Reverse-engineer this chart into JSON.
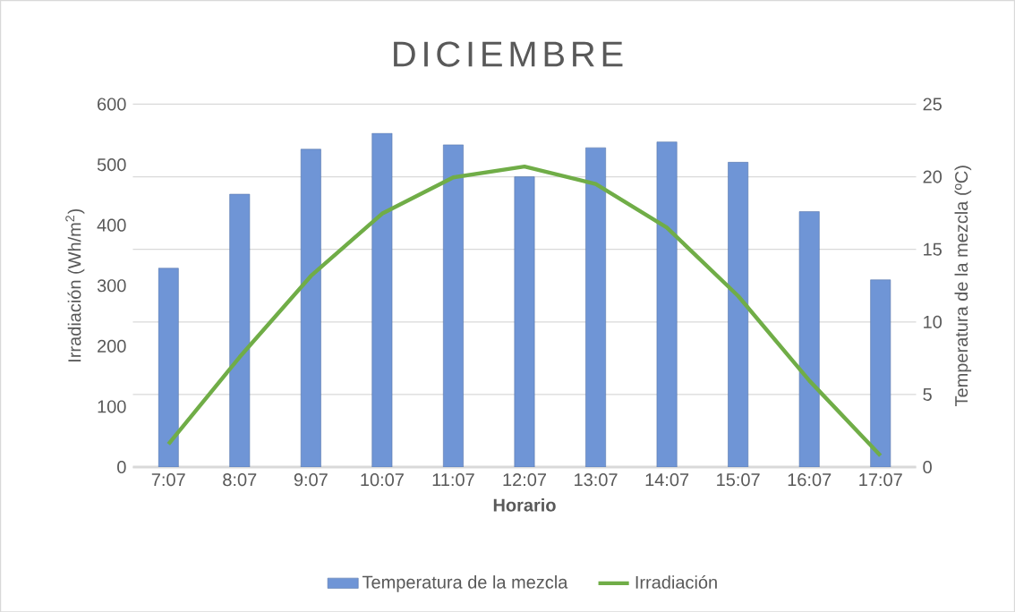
{
  "chart_data": {
    "type": "bar",
    "title": "DICIEMBRE",
    "xlabel": "Horario",
    "ylabel": "Irradiación (Wh/m$^{2}$)",
    "y2label": "Temperatura de la mezcla (ºC)",
    "categories": [
      "7:07",
      "8:07",
      "9:07",
      "10:07",
      "11:07",
      "12:07",
      "13:07",
      "14:07",
      "15:07",
      "16:07",
      "17:07"
    ],
    "series": [
      {
        "name": "Temperatura de la mezcla",
        "axis": "y2",
        "color": "#6f95d6",
        "values": [
          13.7,
          18.8,
          21.9,
          23.0,
          22.2,
          20.0,
          22.0,
          22.4,
          21.0,
          17.6,
          12.9
        ]
      },
      {
        "name": "Irradiación",
        "type": "line",
        "color": "#70ad47",
        "values": [
          38,
          182,
          316,
          419,
          479,
          497,
          468,
          396,
          283,
          143,
          19
        ]
      }
    ],
    "ylim": [
      0,
      600
    ],
    "yticks": [
      0,
      100,
      200,
      300,
      400,
      500,
      600
    ],
    "y2lim": [
      0,
      25
    ],
    "y2ticks": [
      0,
      5,
      10,
      15,
      20,
      25
    ],
    "grid": "y",
    "legend": "bottom"
  }
}
